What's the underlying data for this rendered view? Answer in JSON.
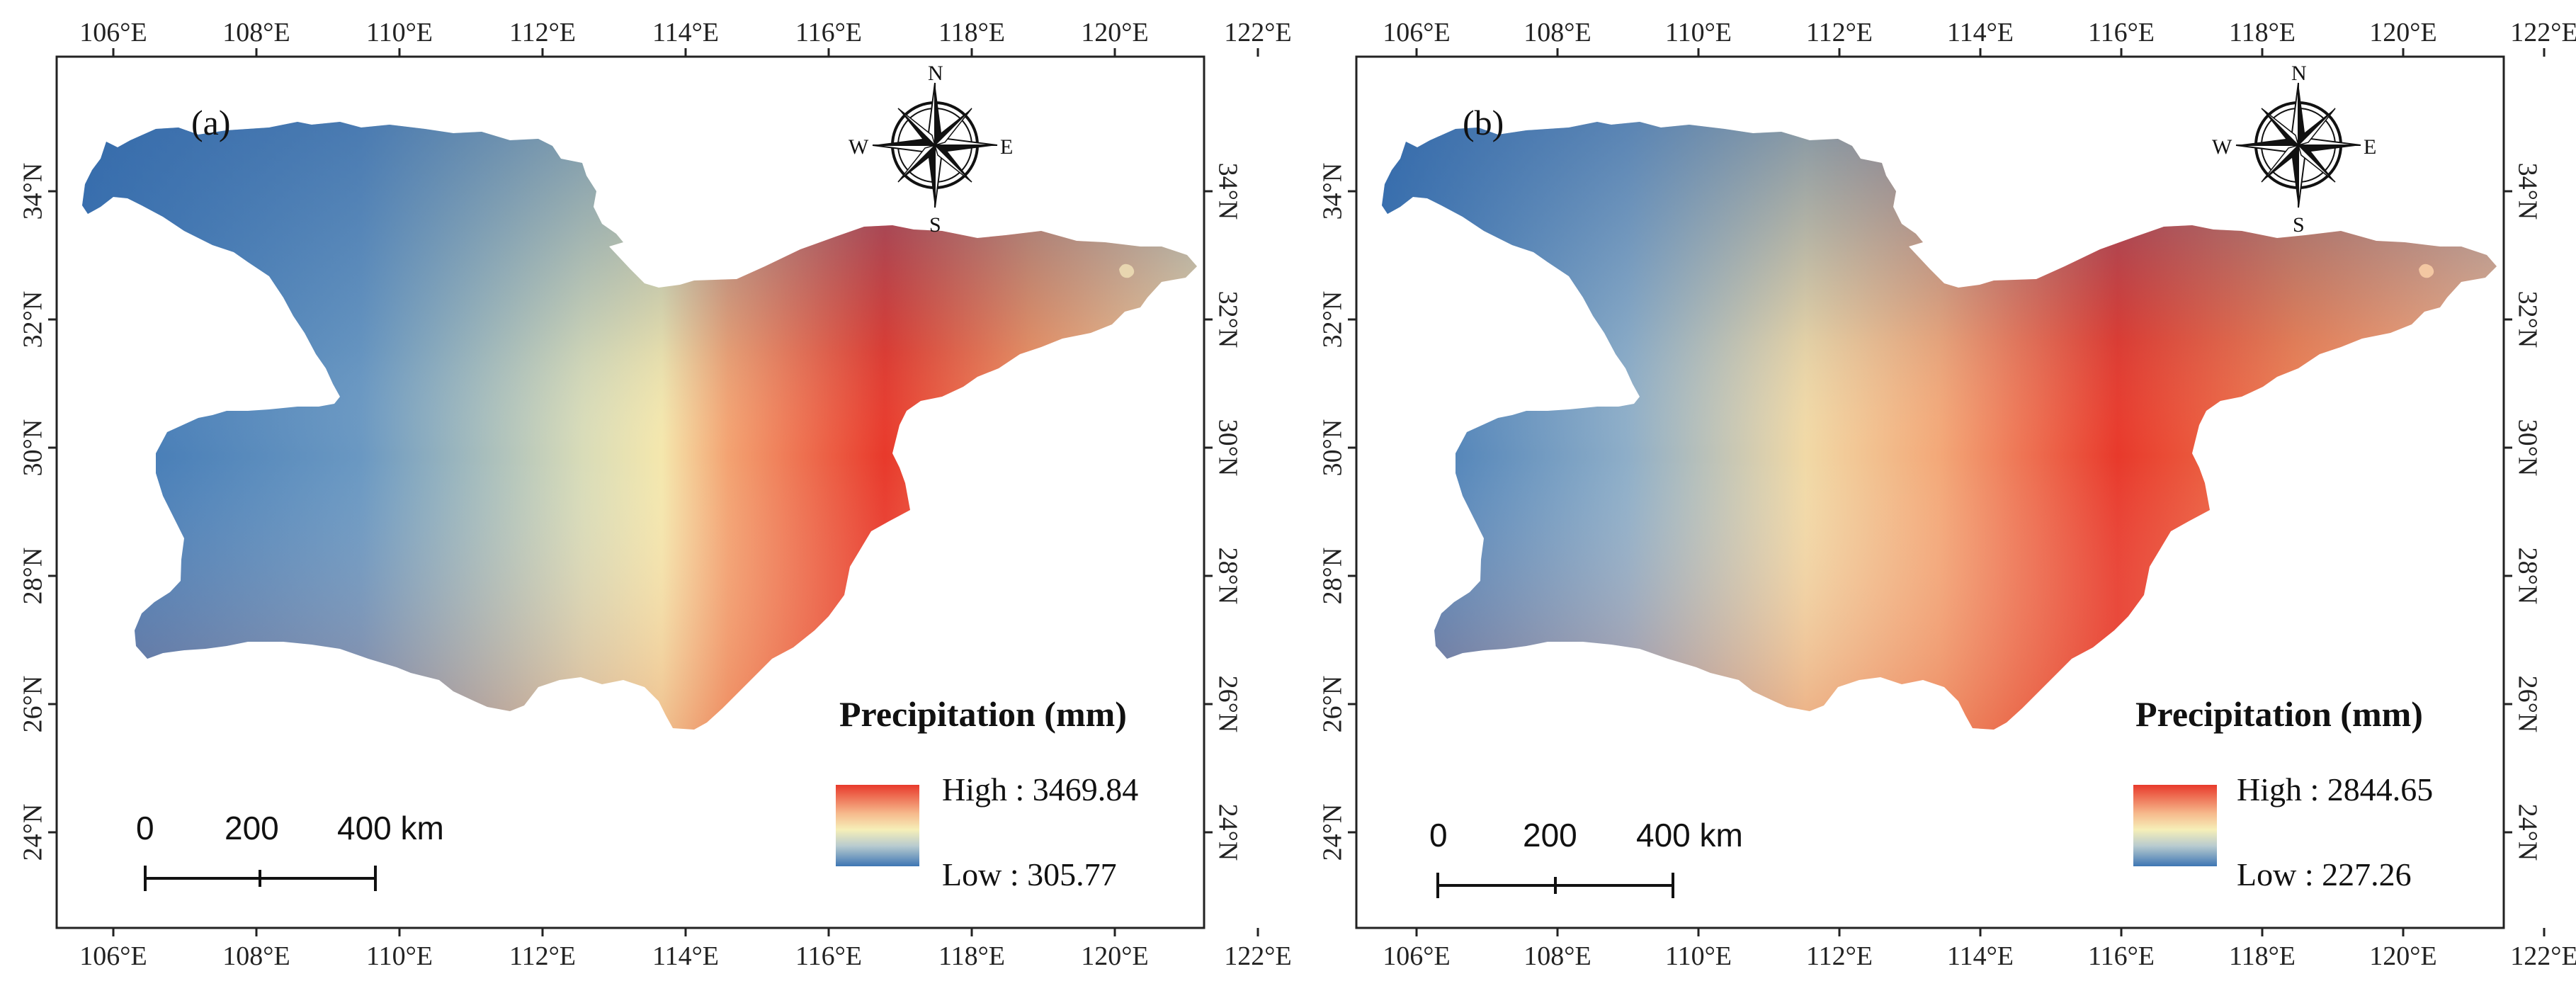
{
  "longitude_labels": [
    "106°E",
    "108°E",
    "110°E",
    "112°E",
    "114°E",
    "116°E",
    "118°E",
    "120°E",
    "122°E"
  ],
  "latitude_labels": [
    "24°N",
    "26°N",
    "28°N",
    "30°N",
    "32°N",
    "34°N"
  ],
  "compass": {
    "n": "N",
    "s": "S",
    "e": "E",
    "w": "W"
  },
  "scale_bar": {
    "labels": [
      "0",
      "200",
      "400 km"
    ]
  },
  "legend_title": "Precipitation (mm)",
  "colors": {
    "high": "#e8392b",
    "mid": "#f6efb8",
    "low": "#3e76b4"
  },
  "panels": [
    {
      "label": "(a)",
      "legend_high": "High : 3469.84",
      "legend_low": "Low : 305.77",
      "legend_high_value": 3469.84,
      "legend_low_value": 305.77
    },
    {
      "label": "(b)",
      "legend_high": "High : 2844.65",
      "legend_low": "Low : 227.26",
      "legend_high_value": 2844.65,
      "legend_low_value": 227.26
    }
  ]
}
